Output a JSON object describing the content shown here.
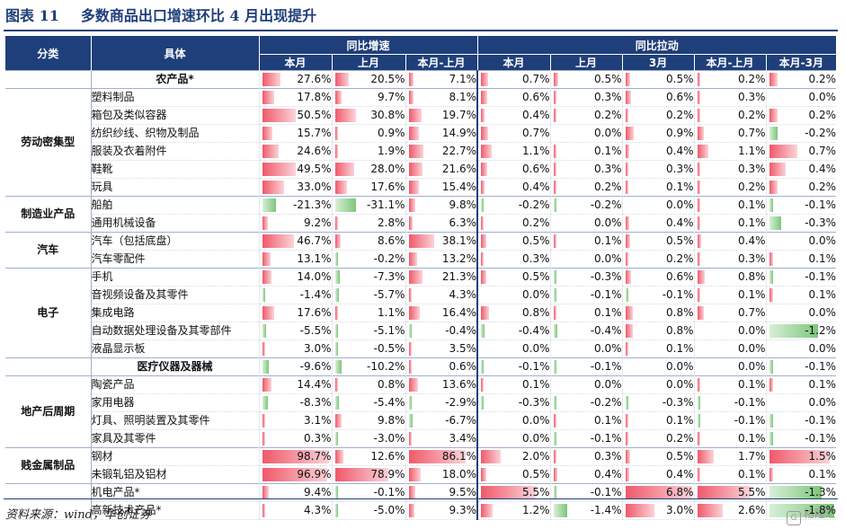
{
  "figure": {
    "label": "图表 11",
    "title": "多数商品出口增速环比 4 月出现提升"
  },
  "header": {
    "cat": "分类",
    "item": "具体",
    "group_yoy": "同比增速",
    "group_pull": "同比拉动",
    "columns": [
      "本月",
      "上月",
      "本月-上月",
      "本月",
      "上月",
      "3月",
      "本月-上月",
      "本月-3月"
    ]
  },
  "scales": [
    100,
    100,
    100,
    6.8,
    6.8,
    6.8,
    6.8,
    1.6
  ],
  "rows": [
    {
      "cat": "",
      "cat_span": 1,
      "group_start": true,
      "item": "农产品*",
      "bold": true,
      "values": [
        27.6,
        20.5,
        7.1,
        0.7,
        0.5,
        0.5,
        0.2,
        0.2
      ],
      "display": [
        "27.6%",
        "20.5%",
        "7.1%",
        "0.7%",
        "0.5%",
        "0.5%",
        "0.2%",
        "0.2%"
      ]
    },
    {
      "cat": "劳动密集型",
      "cat_span": 6,
      "group_start": true,
      "item": "塑料制品",
      "values": [
        17.8,
        9.7,
        8.1,
        0.6,
        0.3,
        0.6,
        0.3,
        0.0
      ],
      "display": [
        "17.8%",
        "9.7%",
        "8.1%",
        "0.6%",
        "0.3%",
        "0.6%",
        "0.3%",
        "0.0%"
      ]
    },
    {
      "item": "箱包及类似容器",
      "values": [
        50.5,
        30.8,
        19.7,
        0.4,
        0.2,
        0.2,
        0.2,
        0.2
      ],
      "display": [
        "50.5%",
        "30.8%",
        "19.7%",
        "0.4%",
        "0.2%",
        "0.2%",
        "0.2%",
        "0.2%"
      ]
    },
    {
      "item": "纺织纱线、织物及制品",
      "values": [
        15.7,
        0.9,
        14.9,
        0.7,
        0.0,
        0.9,
        0.7,
        -0.2
      ],
      "display": [
        "15.7%",
        "0.9%",
        "14.9%",
        "0.7%",
        "0.0%",
        "0.9%",
        "0.7%",
        "-0.2%"
      ]
    },
    {
      "item": "服装及衣着附件",
      "values": [
        24.6,
        1.9,
        22.7,
        1.1,
        0.1,
        0.4,
        1.1,
        0.7
      ],
      "display": [
        "24.6%",
        "1.9%",
        "22.7%",
        "1.1%",
        "0.1%",
        "0.4%",
        "1.1%",
        "0.7%"
      ]
    },
    {
      "item": "鞋靴",
      "values": [
        49.5,
        28.0,
        21.6,
        0.6,
        0.3,
        0.3,
        0.3,
        0.4
      ],
      "display": [
        "49.5%",
        "28.0%",
        "21.6%",
        "0.6%",
        "0.3%",
        "0.3%",
        "0.3%",
        "0.4%"
      ]
    },
    {
      "item": "玩具",
      "values": [
        33.0,
        17.6,
        15.4,
        0.4,
        0.2,
        0.1,
        0.2,
        0.2
      ],
      "display": [
        "33.0%",
        "17.6%",
        "15.4%",
        "0.4%",
        "0.2%",
        "0.1%",
        "0.2%",
        "0.2%"
      ]
    },
    {
      "cat": "制造业产品",
      "cat_span": 2,
      "group_start": true,
      "item": "船舶",
      "values": [
        -21.3,
        -31.1,
        9.8,
        -0.2,
        -0.2,
        0.0,
        0.1,
        -0.1
      ],
      "display": [
        "-21.3%",
        "-31.1%",
        "9.8%",
        "-0.2%",
        "-0.2%",
        "0.0%",
        "0.1%",
        "-0.1%"
      ]
    },
    {
      "item": "通用机械设备",
      "values": [
        9.2,
        2.8,
        6.3,
        0.2,
        0.0,
        0.4,
        0.1,
        -0.3
      ],
      "display": [
        "9.2%",
        "2.8%",
        "6.3%",
        "0.2%",
        "0.0%",
        "0.4%",
        "0.1%",
        "-0.3%"
      ]
    },
    {
      "cat": "汽车",
      "cat_span": 2,
      "group_start": true,
      "item": "汽车（包括底盘）",
      "values": [
        46.7,
        8.6,
        38.1,
        0.5,
        0.1,
        0.5,
        0.4,
        0.0
      ],
      "display": [
        "46.7%",
        "8.6%",
        "38.1%",
        "0.5%",
        "0.1%",
        "0.5%",
        "0.4%",
        "0.0%"
      ]
    },
    {
      "item": "汽车零配件",
      "values": [
        13.1,
        -0.2,
        13.2,
        0.3,
        0.0,
        0.2,
        0.3,
        0.1
      ],
      "display": [
        "13.1%",
        "-0.2%",
        "13.2%",
        "0.3%",
        "0.0%",
        "0.2%",
        "0.3%",
        "0.1%"
      ]
    },
    {
      "cat": "电子",
      "cat_span": 5,
      "group_start": true,
      "item": "手机",
      "values": [
        14.0,
        -7.3,
        21.3,
        0.5,
        -0.3,
        0.6,
        0.8,
        -0.1
      ],
      "display": [
        "14.0%",
        "-7.3%",
        "21.3%",
        "0.5%",
        "-0.3%",
        "0.6%",
        "0.8%",
        "-0.1%"
      ]
    },
    {
      "item": "音视频设备及其零件",
      "values": [
        -1.4,
        -5.7,
        4.3,
        0.0,
        -0.1,
        -0.1,
        0.1,
        0.1
      ],
      "display": [
        "-1.4%",
        "-5.7%",
        "4.3%",
        "0.0%",
        "-0.1%",
        "-0.1%",
        "0.1%",
        "0.1%"
      ]
    },
    {
      "item": "集成电路",
      "values": [
        17.6,
        1.1,
        16.4,
        0.8,
        0.1,
        0.8,
        0.7,
        0.0
      ],
      "display": [
        "17.6%",
        "1.1%",
        "16.4%",
        "0.8%",
        "0.1%",
        "0.8%",
        "0.7%",
        "0.0%"
      ]
    },
    {
      "item": "自动数据处理设备及其零部件",
      "values": [
        -5.5,
        -5.1,
        -0.4,
        -0.4,
        -0.4,
        0.8,
        0.0,
        -1.2
      ],
      "display": [
        "-5.5%",
        "-5.1%",
        "-0.4%",
        "-0.4%",
        "-0.4%",
        "0.8%",
        "0.0%",
        "-1.2%"
      ]
    },
    {
      "item": "液晶显示板",
      "values": [
        3.0,
        -0.5,
        3.5,
        0.0,
        0.0,
        0.1,
        0.0,
        0.0
      ],
      "display": [
        "3.0%",
        "-0.5%",
        "3.5%",
        "0.0%",
        "0.0%",
        "0.1%",
        "0.0%",
        "0.0%"
      ]
    },
    {
      "cat": "",
      "cat_span": 1,
      "group_start": true,
      "item": "医疗仪器及器械",
      "bold": true,
      "values": [
        -9.6,
        -10.2,
        0.6,
        -0.1,
        -0.1,
        0.0,
        0.0,
        -0.1
      ],
      "display": [
        "-9.6%",
        "-10.2%",
        "0.6%",
        "-0.1%",
        "-0.1%",
        "0.0%",
        "0.0%",
        "-0.1%"
      ]
    },
    {
      "cat": "地产后周期",
      "cat_span": 4,
      "group_start": true,
      "item": "陶瓷产品",
      "values": [
        14.4,
        0.8,
        13.6,
        0.1,
        0.0,
        0.0,
        0.1,
        0.1
      ],
      "display": [
        "14.4%",
        "0.8%",
        "13.6%",
        "0.1%",
        "0.0%",
        "0.0%",
        "0.1%",
        "0.1%"
      ]
    },
    {
      "item": "家用电器",
      "values": [
        -8.3,
        -5.4,
        -2.9,
        -0.3,
        -0.2,
        -0.3,
        -0.1,
        0.0
      ],
      "display": [
        "-8.3%",
        "-5.4%",
        "-2.9%",
        "-0.3%",
        "-0.2%",
        "-0.3%",
        "-0.1%",
        "0.0%"
      ]
    },
    {
      "item": "灯具、照明装置及其零件",
      "values": [
        3.1,
        9.8,
        -6.7,
        0.0,
        0.1,
        0.1,
        -0.1,
        -0.1
      ],
      "display": [
        "3.1%",
        "9.8%",
        "-6.7%",
        "0.0%",
        "0.1%",
        "0.1%",
        "-0.1%",
        "-0.1%"
      ]
    },
    {
      "item": "家具及其零件",
      "values": [
        0.3,
        -3.0,
        3.4,
        0.0,
        -0.1,
        0.2,
        0.1,
        -0.1
      ],
      "display": [
        "0.3%",
        "-3.0%",
        "3.4%",
        "0.0%",
        "-0.1%",
        "0.2%",
        "0.1%",
        "-0.1%"
      ]
    },
    {
      "cat": "贱金属制品",
      "cat_span": 2,
      "group_start": true,
      "item": "钢材",
      "values": [
        98.7,
        12.6,
        86.1,
        2.0,
        0.3,
        0.5,
        1.7,
        1.5
      ],
      "display": [
        "98.7%",
        "12.6%",
        "86.1%",
        "2.0%",
        "0.3%",
        "0.5%",
        "1.7%",
        "1.5%"
      ]
    },
    {
      "item": "未锻轧铝及铝材",
      "values": [
        96.9,
        78.9,
        18.0,
        0.5,
        0.4,
        0.4,
        0.1,
        0.1
      ],
      "display": [
        "96.9%",
        "78.9%",
        "18.0%",
        "0.5%",
        "0.4%",
        "0.4%",
        "0.1%",
        "0.1%"
      ]
    },
    {
      "cat": "",
      "cat_span": 2,
      "group_start": true,
      "item": "机电产品*",
      "values": [
        9.4,
        -0.1,
        9.5,
        5.5,
        -0.1,
        6.8,
        5.5,
        -1.3
      ],
      "display": [
        "9.4%",
        "-0.1%",
        "9.5%",
        "5.5%",
        "-0.1%",
        "6.8%",
        "5.5%",
        "-1.3%"
      ]
    },
    {
      "item": "高新技术产品*",
      "values": [
        4.3,
        -5.0,
        9.3,
        1.2,
        -1.4,
        3.0,
        2.6,
        -1.8
      ],
      "display": [
        "4.3%",
        "-5.0%",
        "9.3%",
        "1.2%",
        "-1.4%",
        "3.0%",
        "2.6%",
        "-1.8%"
      ]
    }
  ],
  "source": "资料来源：wind，华创证券",
  "watermark": "格隆汇"
}
